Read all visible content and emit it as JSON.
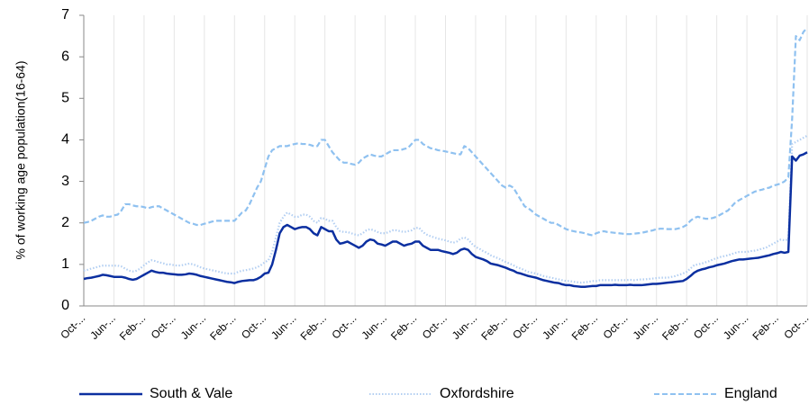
{
  "chart_data": {
    "type": "line",
    "y_label": "% of working age population(16-64)",
    "categories": [
      "Oct-...",
      null,
      null,
      null,
      null,
      null,
      null,
      null,
      "Jun-...",
      null,
      null,
      null,
      null,
      null,
      null,
      null,
      "Feb-...",
      null,
      null,
      null,
      null,
      null,
      null,
      null,
      "Oct-...",
      null,
      null,
      null,
      null,
      null,
      null,
      null,
      "Jun-...",
      null,
      null,
      null,
      null,
      null,
      null,
      null,
      "Feb-...",
      null,
      null,
      null,
      null,
      null,
      null,
      null,
      "Oct-...",
      null,
      null,
      null,
      null,
      null,
      null,
      null,
      "Jun-...",
      null,
      null,
      null,
      null,
      null,
      null,
      null,
      "Feb-...",
      null,
      null,
      null,
      null,
      null,
      null,
      null,
      "Oct-...",
      null,
      null,
      null,
      null,
      null,
      null,
      null,
      "Jun-...",
      null,
      null,
      null,
      null,
      null,
      null,
      null,
      "Feb-...",
      null,
      null,
      null,
      null,
      null,
      null,
      null,
      "Oct-...",
      null,
      null,
      null,
      null,
      null,
      null,
      null,
      "Jun-...",
      null,
      null,
      null,
      null,
      null,
      null,
      null,
      "Feb-...",
      null,
      null,
      null,
      null,
      null,
      null,
      null,
      "Oct-...",
      null,
      null,
      null,
      null,
      null,
      null,
      null,
      "Jun-...",
      null,
      null,
      null,
      null,
      null,
      null,
      null,
      "Feb-...",
      null,
      null,
      null,
      null,
      null,
      null,
      null,
      "Oct-...",
      null,
      null,
      null,
      null,
      null,
      null,
      null,
      "Jun-...",
      null,
      null,
      null,
      null,
      null,
      null,
      null,
      "Feb-...",
      null,
      null,
      null,
      null,
      null,
      null,
      null,
      "Oct-...",
      null,
      null,
      null,
      null,
      null,
      null,
      null,
      "Jun-...",
      null,
      null,
      null,
      null,
      null,
      null,
      null,
      "Feb-...",
      null,
      null,
      null,
      null,
      null,
      null,
      null,
      "Oct-..."
    ],
    "series": [
      {
        "name": "South & Vale",
        "color": "#0b2fa0",
        "style": "solid",
        "values": [
          0.65,
          0.67,
          0.68,
          0.7,
          0.72,
          0.75,
          0.74,
          0.72,
          0.7,
          0.7,
          0.7,
          0.68,
          0.65,
          0.63,
          0.65,
          0.7,
          0.75,
          0.8,
          0.85,
          0.82,
          0.8,
          0.8,
          0.78,
          0.77,
          0.76,
          0.75,
          0.75,
          0.76,
          0.78,
          0.77,
          0.75,
          0.72,
          0.7,
          0.68,
          0.66,
          0.64,
          0.62,
          0.6,
          0.58,
          0.57,
          0.55,
          0.58,
          0.6,
          0.61,
          0.62,
          0.62,
          0.65,
          0.7,
          0.78,
          0.8,
          1.0,
          1.35,
          1.75,
          1.9,
          1.95,
          1.9,
          1.85,
          1.88,
          1.9,
          1.9,
          1.85,
          1.75,
          1.7,
          1.9,
          1.85,
          1.8,
          1.8,
          1.6,
          1.5,
          1.52,
          1.55,
          1.5,
          1.45,
          1.4,
          1.45,
          1.55,
          1.6,
          1.58,
          1.5,
          1.48,
          1.45,
          1.5,
          1.55,
          1.55,
          1.5,
          1.45,
          1.48,
          1.5,
          1.55,
          1.55,
          1.45,
          1.4,
          1.35,
          1.35,
          1.35,
          1.32,
          1.3,
          1.28,
          1.25,
          1.28,
          1.35,
          1.38,
          1.35,
          1.25,
          1.18,
          1.15,
          1.12,
          1.08,
          1.02,
          1.0,
          0.98,
          0.95,
          0.92,
          0.88,
          0.85,
          0.8,
          0.78,
          0.75,
          0.72,
          0.7,
          0.68,
          0.65,
          0.62,
          0.6,
          0.58,
          0.56,
          0.55,
          0.52,
          0.5,
          0.5,
          0.48,
          0.47,
          0.46,
          0.46,
          0.47,
          0.48,
          0.48,
          0.5,
          0.5,
          0.5,
          0.5,
          0.51,
          0.5,
          0.5,
          0.5,
          0.51,
          0.5,
          0.5,
          0.5,
          0.51,
          0.52,
          0.53,
          0.53,
          0.54,
          0.55,
          0.56,
          0.57,
          0.58,
          0.59,
          0.6,
          0.65,
          0.72,
          0.8,
          0.85,
          0.88,
          0.9,
          0.93,
          0.95,
          0.98,
          1.0,
          1.02,
          1.05,
          1.08,
          1.1,
          1.12,
          1.12,
          1.13,
          1.14,
          1.15,
          1.16,
          1.18,
          1.2,
          1.22,
          1.25,
          1.27,
          1.3,
          1.28,
          1.3,
          3.6,
          3.5,
          3.62,
          3.65,
          3.7
        ]
      },
      {
        "name": "Oxfordshire",
        "color": "#b3cff2",
        "style": "dotted",
        "values": [
          0.85,
          0.87,
          0.9,
          0.92,
          0.95,
          0.97,
          0.97,
          0.97,
          0.97,
          0.97,
          0.95,
          0.9,
          0.85,
          0.83,
          0.85,
          0.9,
          0.98,
          1.05,
          1.1,
          1.08,
          1.05,
          1.03,
          1.0,
          1.0,
          0.98,
          0.97,
          0.98,
          1.0,
          1.02,
          1.0,
          0.97,
          0.93,
          0.9,
          0.88,
          0.86,
          0.84,
          0.82,
          0.8,
          0.78,
          0.78,
          0.78,
          0.82,
          0.85,
          0.86,
          0.88,
          0.9,
          0.93,
          0.98,
          1.05,
          1.1,
          1.3,
          1.65,
          2.0,
          2.15,
          2.25,
          2.2,
          2.15,
          2.15,
          2.2,
          2.2,
          2.15,
          2.05,
          2.0,
          2.12,
          2.1,
          2.05,
          2.05,
          1.9,
          1.8,
          1.78,
          1.78,
          1.75,
          1.72,
          1.7,
          1.75,
          1.82,
          1.85,
          1.82,
          1.78,
          1.75,
          1.75,
          1.78,
          1.82,
          1.82,
          1.8,
          1.78,
          1.8,
          1.82,
          1.88,
          1.88,
          1.78,
          1.72,
          1.68,
          1.65,
          1.62,
          1.6,
          1.58,
          1.55,
          1.52,
          1.55,
          1.62,
          1.65,
          1.6,
          1.5,
          1.42,
          1.38,
          1.32,
          1.28,
          1.22,
          1.18,
          1.15,
          1.1,
          1.06,
          1.02,
          0.98,
          0.93,
          0.9,
          0.86,
          0.82,
          0.8,
          0.78,
          0.75,
          0.72,
          0.7,
          0.68,
          0.66,
          0.64,
          0.62,
          0.6,
          0.6,
          0.58,
          0.57,
          0.56,
          0.57,
          0.58,
          0.6,
          0.6,
          0.62,
          0.62,
          0.62,
          0.62,
          0.62,
          0.62,
          0.62,
          0.62,
          0.63,
          0.62,
          0.63,
          0.64,
          0.64,
          0.65,
          0.66,
          0.67,
          0.68,
          0.68,
          0.68,
          0.7,
          0.72,
          0.75,
          0.78,
          0.82,
          0.9,
          0.98,
          1.0,
          1.02,
          1.05,
          1.08,
          1.12,
          1.15,
          1.18,
          1.2,
          1.22,
          1.25,
          1.28,
          1.3,
          1.3,
          1.3,
          1.32,
          1.33,
          1.35,
          1.38,
          1.4,
          1.45,
          1.5,
          1.55,
          1.6,
          1.58,
          1.6,
          3.9,
          3.95,
          4.0,
          4.05,
          4.1
        ]
      },
      {
        "name": "England",
        "color": "#8fc1f0",
        "style": "dashed",
        "values": [
          2.0,
          2.02,
          2.05,
          2.1,
          2.15,
          2.18,
          2.15,
          2.15,
          2.18,
          2.2,
          2.3,
          2.45,
          2.45,
          2.42,
          2.4,
          2.4,
          2.38,
          2.35,
          2.38,
          2.4,
          2.4,
          2.35,
          2.3,
          2.25,
          2.2,
          2.15,
          2.1,
          2.05,
          2.0,
          1.98,
          1.95,
          1.95,
          1.98,
          2.0,
          2.03,
          2.05,
          2.05,
          2.05,
          2.05,
          2.05,
          2.05,
          2.15,
          2.25,
          2.3,
          2.45,
          2.65,
          2.85,
          3.0,
          3.3,
          3.6,
          3.75,
          3.8,
          3.85,
          3.85,
          3.85,
          3.88,
          3.9,
          3.92,
          3.9,
          3.9,
          3.88,
          3.85,
          3.85,
          4.0,
          4.0,
          3.85,
          3.7,
          3.6,
          3.5,
          3.45,
          3.45,
          3.42,
          3.4,
          3.45,
          3.55,
          3.6,
          3.65,
          3.62,
          3.6,
          3.6,
          3.65,
          3.7,
          3.75,
          3.75,
          3.75,
          3.78,
          3.8,
          3.9,
          4.0,
          4.0,
          3.9,
          3.85,
          3.8,
          3.78,
          3.75,
          3.74,
          3.72,
          3.7,
          3.68,
          3.66,
          3.65,
          3.85,
          3.8,
          3.7,
          3.6,
          3.5,
          3.4,
          3.3,
          3.2,
          3.1,
          3.0,
          2.9,
          2.85,
          2.9,
          2.85,
          2.7,
          2.55,
          2.4,
          2.35,
          2.28,
          2.2,
          2.15,
          2.1,
          2.05,
          2.0,
          2.0,
          1.95,
          1.9,
          1.85,
          1.82,
          1.8,
          1.78,
          1.77,
          1.75,
          1.72,
          1.7,
          1.75,
          1.78,
          1.8,
          1.78,
          1.77,
          1.76,
          1.75,
          1.74,
          1.73,
          1.73,
          1.74,
          1.75,
          1.76,
          1.78,
          1.8,
          1.82,
          1.85,
          1.86,
          1.86,
          1.85,
          1.85,
          1.85,
          1.87,
          1.9,
          1.95,
          2.05,
          2.12,
          2.15,
          2.12,
          2.1,
          2.1,
          2.12,
          2.15,
          2.2,
          2.25,
          2.3,
          2.4,
          2.5,
          2.55,
          2.6,
          2.65,
          2.7,
          2.75,
          2.78,
          2.8,
          2.83,
          2.85,
          2.9,
          2.92,
          2.95,
          3.0,
          3.1,
          4.5,
          6.5,
          6.4,
          6.6,
          6.7
        ]
      }
    ],
    "ylim": [
      0,
      7
    ],
    "yticks": [
      0,
      1,
      2,
      3,
      4,
      5,
      6,
      7
    ],
    "grid": "x",
    "legend": "bottom"
  }
}
